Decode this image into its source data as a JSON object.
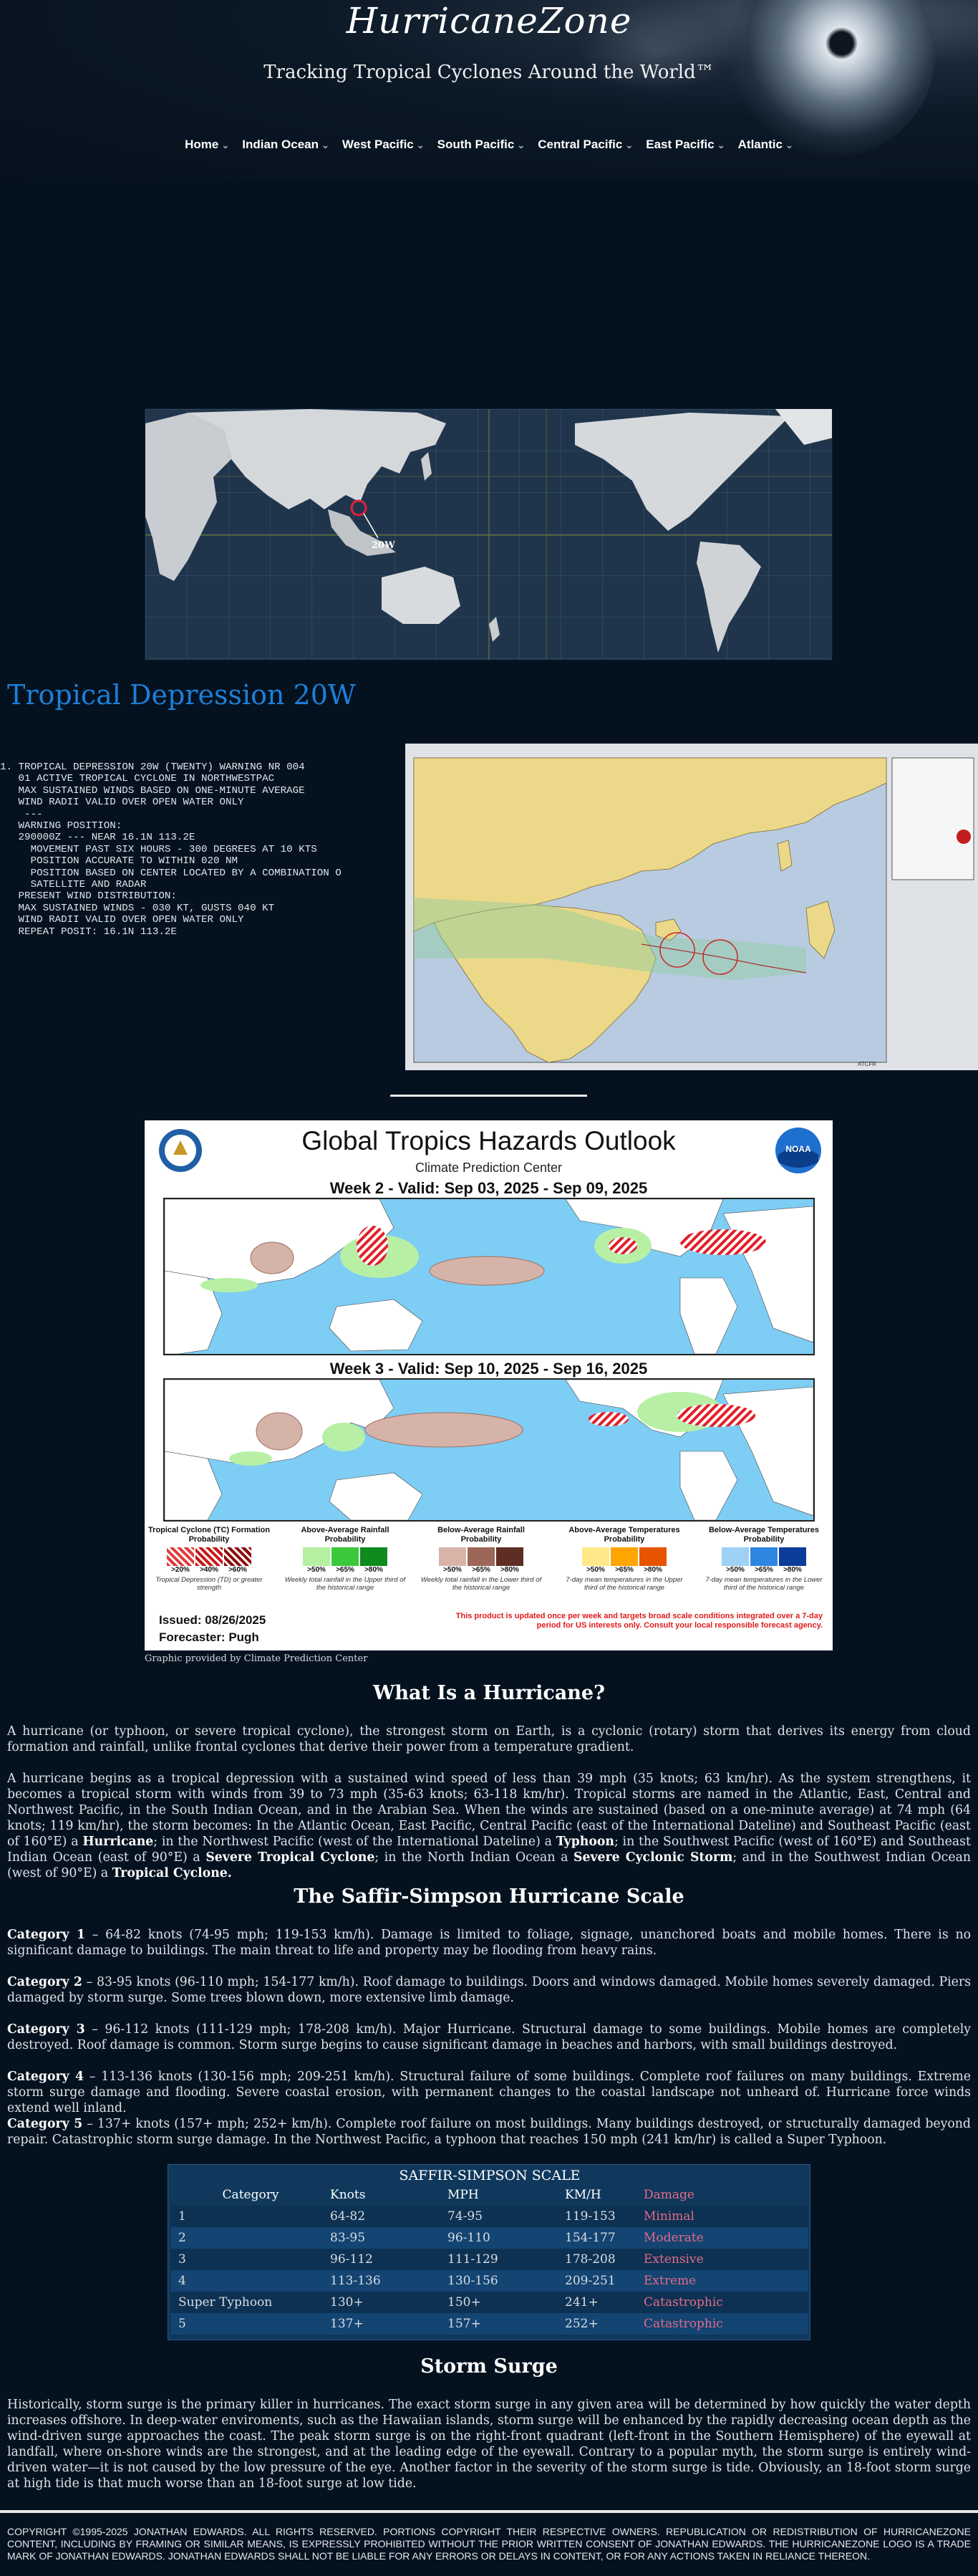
{
  "site": {
    "title": "HurricaneZone",
    "tagline": "Tracking Tropical Cyclones Around the World™"
  },
  "nav": [
    {
      "label": "Home"
    },
    {
      "label": "Indian Ocean"
    },
    {
      "label": "West Pacific"
    },
    {
      "label": "South Pacific"
    },
    {
      "label": "Central Pacific"
    },
    {
      "label": "East Pacific"
    },
    {
      "label": "Atlantic"
    }
  ],
  "worldmap": {
    "marker_label": "20W"
  },
  "storm": {
    "title": "Tropical Depression 20W"
  },
  "warning": {
    "text": "1. TROPICAL DEPRESSION 20W (TWENTY) WARNING NR 004\n   01 ACTIVE TROPICAL CYCLONE IN NORTHWESTPAC\n   MAX SUSTAINED WINDS BASED ON ONE-MINUTE AVERAGE\n   WIND RADII VALID OVER OPEN WATER ONLY\n    ---\n   WARNING POSITION:\n   290000Z --- NEAR 16.1N 113.2E\n     MOVEMENT PAST SIX HOURS - 300 DEGREES AT 10 KTS\n     POSITION ACCURATE TO WITHIN 020 NM\n     POSITION BASED ON CENTER LOCATED BY A COMBINATION O\n     SATELLITE AND RADAR\n   PRESENT WIND DISTRIBUTION:\n   MAX SUSTAINED WINDS - 030 KT, GUSTS 040 KT\n   WIND RADII VALID OVER OPEN WATER ONLY\n   REPEAT POSIT: 16.1N 113.2E"
  },
  "track_map": {
    "corner_label": "ATCFR"
  },
  "gth": {
    "title": "Global Tropics Hazards Outlook",
    "subtitle": "Climate Prediction Center",
    "week2": "Week 2 - Valid: Sep 03, 2025 - Sep 09, 2025",
    "week3": "Week 3 - Valid: Sep 10, 2025 - Sep 16, 2025",
    "noaa": "NOAA",
    "legend": [
      {
        "title": "Tropical Cyclone (TC) Formation Probability",
        "labels": [
          ">20%",
          ">40%",
          ">60%"
        ],
        "colors": [
          "#e23a3a",
          "#c61818",
          "#8b0a0a"
        ],
        "note": "Tropical Depression (TD) or greater strength"
      },
      {
        "title": "Above-Average Rainfall Probability",
        "labels": [
          ">50%",
          ">65%",
          ">80%"
        ],
        "colors": [
          "#b4f0a0",
          "#3cc83c",
          "#0f8a1e"
        ],
        "note": "Weekly total rainfall in the Upper third of the historical range"
      },
      {
        "title": "Below-Average Rainfall Probability",
        "labels": [
          ">50%",
          ">65%",
          ">80%"
        ],
        "colors": [
          "#d8b3a8",
          "#9c6658",
          "#5e2e24"
        ],
        "note": "Weekly total rainfall in the Lower third of the historical range"
      },
      {
        "title": "Above-Average Temperatures Probability",
        "labels": [
          ">50%",
          ">65%",
          ">80%"
        ],
        "colors": [
          "#ffe88a",
          "#ffa500",
          "#e65400"
        ],
        "note": "7-day mean temperatures in the Upper third of the historical range"
      },
      {
        "title": "Below-Average Temperatures Probability",
        "labels": [
          ">50%",
          ">65%",
          ">80%"
        ],
        "colors": [
          "#9fd0f5",
          "#2d86e0",
          "#0b3c99"
        ],
        "note": "7-day mean temperatures in the Lower third of the historical range"
      }
    ],
    "issued": "Issued: 08/26/2025",
    "forecaster": "Forecaster: Pugh",
    "disclaimer": "This product is updated once per week and targets broad scale conditions integrated over a 7-day period for US interests only. Consult your local responsible forecast agency.",
    "caption": "Graphic provided by Climate Prediction Center"
  },
  "article": {
    "what_heading": "What Is a Hurricane?",
    "p1": "A hurricane (or typhoon, or severe tropical cyclone), the strongest storm on Earth, is a cyclonic (rotary) storm that derives its energy from cloud formation and rainfall, unlike frontal cyclones that derive their power from a temperature gradient.",
    "p2a": "A hurricane begins as a tropical depression with a sustained wind speed of less than 39 mph (35 knots; 63 km/hr). As the system strengthens, it becomes a tropical storm with winds from 39 to 73 mph (35-63 knots; 63-118 km/hr). Tropical storms are named in the Atlantic, East, Central and Northwest Pacific, in the South Indian Ocean, and in the Arabian Sea. When the winds are sustained (based on a one-minute average) at 74 mph (64 knots; 119 km/hr), the storm becomes: In the Atlantic Ocean, East Pacific, Central Pacific (east of the International Dateline) and Southeast Pacific (east of 160°E) a ",
    "p2_hurricane": "Hurricane",
    "p2b": "; in the Northwest Pacific (west of the International Dateline) a ",
    "p2_typhoon": "Typhoon",
    "p2c": "; in the Southwest Pacific (west of 160°E) and Southeast Indian Ocean (east of 90°E) a ",
    "p2_stc": "Severe Tropical Cyclone",
    "p2d": "; in the North Indian Ocean a ",
    "p2_scs": "Severe Cyclonic Storm",
    "p2e": "; and in the Southwest Indian Ocean (west of 90°E) a ",
    "p2_tc": "Tropical Cyclone.",
    "ss_heading": "The Saffir-Simpson Hurricane Scale",
    "categories": [
      {
        "label": "Category 1",
        "text": " – 64-82 knots (74-95 mph; 119-153 km/h). Damage is limited to foliage, signage, unanchored boats and mobile homes. There is no significant damage to buildings. The main threat to life and property may be flooding from heavy rains."
      },
      {
        "label": "Category 2",
        "text": " – 83-95 knots (96-110 mph; 154-177 km/h). Roof damage to buildings. Doors and windows damaged. Mobile homes severely damaged. Piers damaged by storm surge. Some trees blown down, more extensive limb damage."
      },
      {
        "label": "Category 3",
        "text": " – 96-112 knots (111-129 mph; 178-208 km/h). Major Hurricane. Structural damage to some buildings. Mobile homes are completely destroyed. Roof damage is common. Storm surge begins to cause significant damage in beaches and harbors, with small buildings destroyed."
      },
      {
        "label": "Category 4",
        "text": " – 113-136 knots (130-156 mph; 209-251 km/h). Structural failure of some buildings. Complete roof failures on many buildings. Extreme storm surge damage and flooding. Severe coastal erosion, with permanent changes to the coastal landscape not unheard of. Hurricane force winds extend well inland."
      },
      {
        "label": "Category 5",
        "text": " – 137+ knots (157+ mph; 252+ km/h). Complete roof failure on most buildings. Many buildings destroyed, or structurally damaged beyond repair. Catastrophic storm surge damage. In the Northwest Pacific, a typhoon that reaches 150 mph (241 km/hr) is called a Super Typhoon."
      }
    ],
    "surge_heading": "Storm Surge",
    "surge_text": "Historically, storm surge is the primary killer in hurricanes. The exact storm surge in any given area will be determined by how quickly the water depth increases offshore. In deep-water enviroments, such as the Hawaiian islands, storm surge will be enhanced by the rapidly decreasing ocean depth as the wind-driven surge approaches the coast. The peak storm surge is on the right-front quadrant (left-front in the Southern Hemisphere) of the eyewall at landfall, where on-shore winds are the strongest, and at the leading edge of the eyewall. Contrary to a popular myth, the storm surge is entirely wind-driven water—it is not caused by the low pressure of the eye. Another factor in the severity of the storm surge is tide. Obviously, an 18-foot storm surge at high tide is that much worse than an 18-foot surge at low tide."
  },
  "table": {
    "title": "SAFFIR-SIMPSON SCALE",
    "headers": [
      "Category",
      "Knots",
      "MPH",
      "KM/H",
      "Damage"
    ],
    "rows": [
      [
        "1",
        "64-82",
        "74-95",
        "119-153",
        "Minimal"
      ],
      [
        "2",
        "83-95",
        "96-110",
        "154-177",
        "Moderate"
      ],
      [
        "3",
        "96-112",
        "111-129",
        "178-208",
        "Extensive"
      ],
      [
        "4",
        "113-136",
        "130-156",
        "209-251",
        "Extreme"
      ],
      [
        "Super Typhoon",
        "130+",
        "150+",
        "241+",
        "Catastrophic"
      ],
      [
        "5",
        "137+",
        "157+",
        "252+",
        "Catastrophic"
      ]
    ]
  },
  "footer": {
    "text": "COPYRIGHT ©1995-2025 JONATHAN EDWARDS. ALL RIGHTS RESERVED. PORTIONS COPYRIGHT THEIR RESPECTIVE OWNERS. REPUBLICATION OR REDISTRIBUTION OF HURRICANEZONE CONTENT, INCLUDING BY FRAMING OR SIMILAR MEANS, IS EXPRESSLY PROHIBITED WITHOUT THE PRIOR WRITTEN CONSENT OF JONATHAN EDWARDS. THE HURRICANEZONE LOGO IS A TRADE MARK OF JONATHAN EDWARDS. JONATHAN EDWARDS SHALL NOT BE LIABLE FOR ANY ERRORS OR DELAYS IN CONTENT, OR FOR ANY ACTIONS TAKEN IN RELIANCE THEREON."
  }
}
